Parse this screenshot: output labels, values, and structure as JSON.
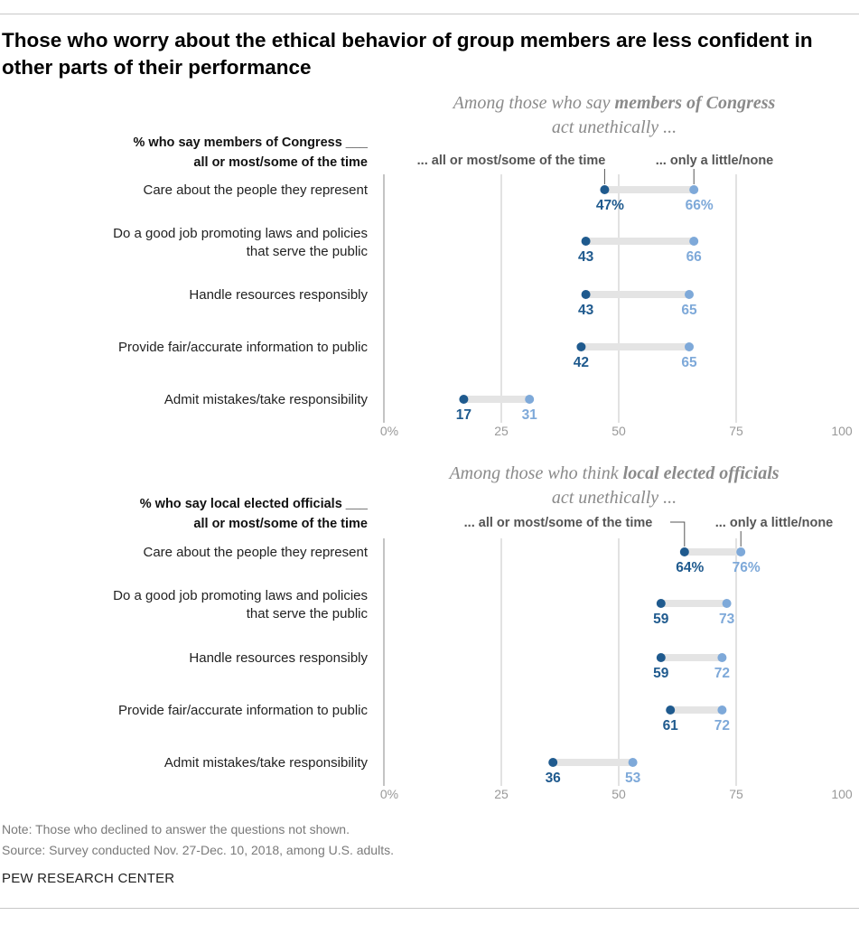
{
  "title": "Those who worry about the ethical behavior of group members are less confident in other parts of their performance",
  "colors": {
    "dark": "#1f5a8e",
    "light": "#7ea9d9",
    "bar": "#e4e4e4",
    "grid": "#c4c4c4",
    "axis": "#999999",
    "subtitle": "#8a8a8a"
  },
  "chart_data": [
    {
      "type": "dot-plot",
      "subtitle_pre": "Among those who say ",
      "subtitle_bold": "members of Congress",
      "subtitle_line2": "act unethically ...",
      "question_line1": "% who say members of Congress ___",
      "question_line2": "all or most/some of the time",
      "legend_dark": "... all or most/some of the time",
      "legend_light": "... only a little/none",
      "xlim": [
        0,
        100
      ],
      "xticks": [
        "0%",
        "25",
        "50",
        "75",
        "100"
      ],
      "grid": true,
      "categories": [
        [
          "Care about the people they represent"
        ],
        [
          "Do a good job promoting laws and policies",
          "that serve the public"
        ],
        [
          "Handle resources responsibly"
        ],
        [
          "Provide fair/accurate information to public"
        ],
        [
          "Admit mistakes/take responsibility"
        ]
      ],
      "dark_values": [
        47,
        43,
        43,
        42,
        17
      ],
      "dark_labels": [
        "47%",
        "43",
        "43",
        "42",
        "17"
      ],
      "light_values": [
        66,
        66,
        65,
        65,
        31
      ],
      "light_labels": [
        "66%",
        "66",
        "65",
        "65",
        "31"
      ]
    },
    {
      "type": "dot-plot",
      "subtitle_pre": "Among those who think ",
      "subtitle_bold": "local elected officials",
      "subtitle_line2": "act unethically ...",
      "question_line1": "% who say local elected officials ___",
      "question_line2": "all or most/some of the time",
      "legend_dark": "... all or most/some of the time",
      "legend_light": "... only a little/none",
      "xlim": [
        0,
        100
      ],
      "xticks": [
        "0%",
        "25",
        "50",
        "75",
        "100"
      ],
      "grid": true,
      "categories": [
        [
          "Care about the people they represent"
        ],
        [
          "Do a good job promoting laws and policies",
          "that serve the public"
        ],
        [
          "Handle resources responsibly"
        ],
        [
          "Provide fair/accurate information to public"
        ],
        [
          "Admit mistakes/take responsibility"
        ]
      ],
      "dark_values": [
        64,
        59,
        59,
        61,
        36
      ],
      "dark_labels": [
        "64%",
        "59",
        "59",
        "61",
        "36"
      ],
      "light_values": [
        76,
        73,
        72,
        72,
        53
      ],
      "light_labels": [
        "76%",
        "73",
        "72",
        "72",
        "53"
      ]
    }
  ],
  "note": "Note: Those who declined to answer the questions not shown.",
  "source": "Source: Survey conducted Nov. 27-Dec. 10, 2018, among U.S. adults.",
  "org": "PEW RESEARCH CENTER"
}
